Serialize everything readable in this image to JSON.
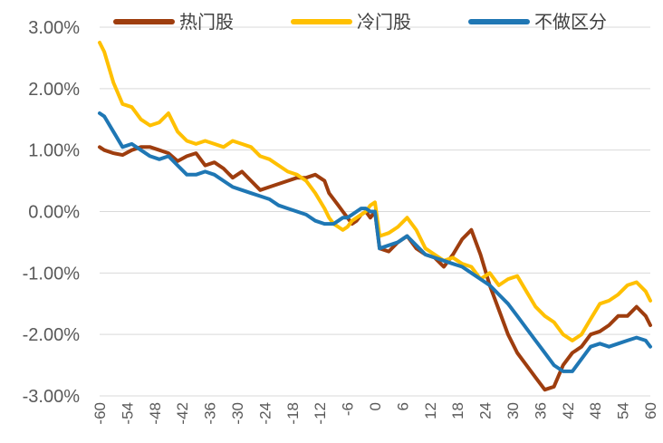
{
  "chart_data": {
    "type": "line",
    "title": "",
    "xlabel": "",
    "ylabel": "",
    "xlim": [
      -60,
      60
    ],
    "ylim": [
      -3.0,
      3.0
    ],
    "x_ticks": [
      -60,
      -54,
      -48,
      -42,
      -36,
      -30,
      -24,
      -18,
      -12,
      -6,
      0,
      6,
      12,
      18,
      24,
      30,
      36,
      42,
      48,
      54,
      60
    ],
    "y_ticks": [
      3.0,
      2.0,
      1.0,
      0.0,
      -1.0,
      -2.0,
      -3.0
    ],
    "y_tick_labels": [
      "3.00%",
      "2.00%",
      "1.00%",
      "0.00%",
      "-1.00%",
      "-2.00%",
      "-3.00%"
    ],
    "x_tick_labels": [
      "-60",
      "-54",
      "-48",
      "-42",
      "-36",
      "-30",
      "-24",
      "-18",
      "-12",
      "-6",
      "0",
      "6",
      "12",
      "18",
      "24",
      "30",
      "36",
      "42",
      "48",
      "54",
      "60"
    ],
    "grid": true,
    "legend_position": "top",
    "series": [
      {
        "name": "热门股",
        "color": "#9e3d0e",
        "x": [
          -60,
          -59,
          -57,
          -55,
          -53,
          -51,
          -49,
          -47,
          -45,
          -43,
          -41,
          -39,
          -37,
          -35,
          -33,
          -31,
          -29,
          -27,
          -25,
          -23,
          -21,
          -19,
          -17,
          -15,
          -13,
          -11,
          -10,
          -9,
          -8,
          -7,
          -6,
          -5,
          -4,
          -3,
          -2,
          -1,
          0,
          1,
          3,
          5,
          7,
          9,
          11,
          13,
          15,
          17,
          19,
          21,
          23,
          25,
          27,
          29,
          31,
          33,
          35,
          37,
          39,
          41,
          43,
          45,
          47,
          49,
          51,
          53,
          55,
          57,
          59,
          60
        ],
        "values": [
          1.05,
          1.0,
          0.95,
          0.92,
          1.0,
          1.05,
          1.05,
          1.0,
          0.95,
          0.82,
          0.9,
          0.95,
          0.75,
          0.8,
          0.7,
          0.55,
          0.65,
          0.5,
          0.35,
          0.4,
          0.45,
          0.5,
          0.55,
          0.55,
          0.6,
          0.5,
          0.3,
          0.2,
          0.1,
          0.0,
          -0.1,
          -0.2,
          -0.15,
          -0.05,
          0.0,
          -0.1,
          0.0,
          -0.6,
          -0.65,
          -0.5,
          -0.4,
          -0.6,
          -0.7,
          -0.75,
          -0.9,
          -0.7,
          -0.45,
          -0.3,
          -0.7,
          -1.2,
          -1.6,
          -2.0,
          -2.3,
          -2.5,
          -2.7,
          -2.9,
          -2.85,
          -2.5,
          -2.3,
          -2.2,
          -2.0,
          -1.95,
          -1.85,
          -1.7,
          -1.7,
          -1.55,
          -1.7,
          -1.85
        ]
      },
      {
        "name": "冷门股",
        "color": "#ffc000",
        "x": [
          -60,
          -59,
          -57,
          -55,
          -53,
          -51,
          -49,
          -47,
          -45,
          -43,
          -41,
          -39,
          -37,
          -35,
          -33,
          -31,
          -29,
          -27,
          -25,
          -23,
          -21,
          -19,
          -17,
          -15,
          -13,
          -11,
          -10,
          -9,
          -8,
          -7,
          -6,
          -5,
          -4,
          -3,
          -2,
          -1,
          0,
          1,
          3,
          5,
          7,
          9,
          11,
          13,
          15,
          17,
          19,
          21,
          23,
          25,
          27,
          29,
          31,
          33,
          35,
          37,
          39,
          41,
          43,
          45,
          47,
          49,
          51,
          53,
          55,
          57,
          59,
          60
        ],
        "values": [
          2.75,
          2.6,
          2.1,
          1.75,
          1.7,
          1.5,
          1.4,
          1.45,
          1.6,
          1.3,
          1.15,
          1.1,
          1.15,
          1.1,
          1.05,
          1.15,
          1.1,
          1.05,
          0.9,
          0.85,
          0.75,
          0.65,
          0.6,
          0.5,
          0.3,
          0.05,
          -0.1,
          -0.2,
          -0.25,
          -0.3,
          -0.25,
          -0.15,
          -0.1,
          -0.05,
          0.0,
          0.1,
          0.15,
          -0.4,
          -0.35,
          -0.25,
          -0.1,
          -0.3,
          -0.6,
          -0.7,
          -0.8,
          -0.75,
          -0.85,
          -0.9,
          -1.1,
          -1.0,
          -1.2,
          -1.1,
          -1.05,
          -1.3,
          -1.55,
          -1.7,
          -1.8,
          -2.0,
          -2.1,
          -2.0,
          -1.75,
          -1.5,
          -1.45,
          -1.35,
          -1.2,
          -1.15,
          -1.3,
          -1.45
        ]
      },
      {
        "name": "不做区分",
        "color": "#1f77b4",
        "x": [
          -60,
          -59,
          -57,
          -55,
          -53,
          -51,
          -49,
          -47,
          -45,
          -43,
          -41,
          -39,
          -37,
          -35,
          -33,
          -31,
          -29,
          -27,
          -25,
          -23,
          -21,
          -19,
          -17,
          -15,
          -13,
          -11,
          -10,
          -9,
          -8,
          -7,
          -6,
          -5,
          -4,
          -3,
          -2,
          -1,
          0,
          1,
          3,
          5,
          7,
          9,
          11,
          13,
          15,
          17,
          19,
          21,
          23,
          25,
          27,
          29,
          31,
          33,
          35,
          37,
          39,
          41,
          43,
          45,
          47,
          49,
          51,
          53,
          55,
          57,
          59,
          60
        ],
        "values": [
          1.6,
          1.55,
          1.3,
          1.05,
          1.1,
          1.0,
          0.9,
          0.85,
          0.9,
          0.75,
          0.6,
          0.6,
          0.65,
          0.6,
          0.5,
          0.4,
          0.35,
          0.3,
          0.25,
          0.2,
          0.1,
          0.05,
          0.0,
          -0.05,
          -0.15,
          -0.2,
          -0.2,
          -0.2,
          -0.15,
          -0.1,
          -0.1,
          -0.05,
          0.0,
          0.05,
          0.05,
          0.0,
          0.0,
          -0.6,
          -0.55,
          -0.5,
          -0.4,
          -0.55,
          -0.7,
          -0.75,
          -0.8,
          -0.85,
          -0.9,
          -1.0,
          -1.1,
          -1.2,
          -1.35,
          -1.5,
          -1.7,
          -1.9,
          -2.1,
          -2.3,
          -2.5,
          -2.6,
          -2.6,
          -2.4,
          -2.2,
          -2.15,
          -2.2,
          -2.15,
          -2.1,
          -2.05,
          -2.1,
          -2.2
        ]
      }
    ]
  }
}
